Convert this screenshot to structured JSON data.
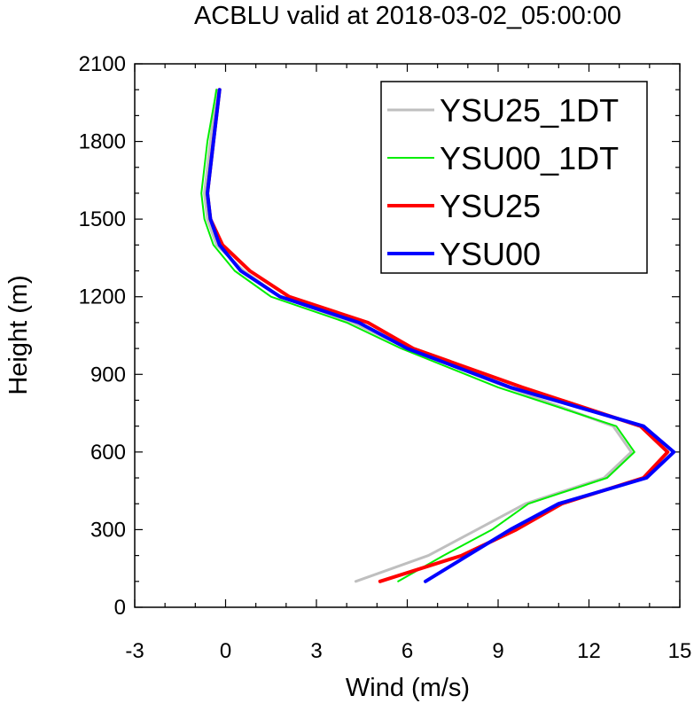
{
  "chart_data": {
    "type": "line",
    "title": "ACBLU valid at 2018-03-02_05:00:00",
    "xlabel": "Wind (m/s)",
    "ylabel": "Height (m)",
    "xlim": [
      -3,
      15
    ],
    "ylim": [
      0,
      2100
    ],
    "xticks": [
      -3,
      0,
      3,
      6,
      9,
      12,
      15
    ],
    "yticks": [
      0,
      300,
      600,
      900,
      1200,
      1500,
      1800,
      2100
    ],
    "grid": false,
    "legend_position": "top-right",
    "series": [
      {
        "name": "YSU25_1DT",
        "color": "#bfbfbf",
        "points": [
          [
            4.3,
            100
          ],
          [
            6.7,
            200
          ],
          [
            8.3,
            300
          ],
          [
            9.9,
            400
          ],
          [
            12.5,
            500
          ],
          [
            13.4,
            600
          ],
          [
            12.8,
            700
          ],
          [
            9.3,
            850
          ],
          [
            6.0,
            1000
          ],
          [
            4.2,
            1100
          ],
          [
            1.8,
            1200
          ],
          [
            0.6,
            1300
          ],
          [
            -0.3,
            1400
          ],
          [
            -0.6,
            1500
          ],
          [
            -0.7,
            1600
          ],
          [
            -0.6,
            1700
          ],
          [
            -0.5,
            1800
          ],
          [
            -0.3,
            2000
          ]
        ]
      },
      {
        "name": "YSU00_1DT",
        "color": "#00ee00",
        "points": [
          [
            5.7,
            100
          ],
          [
            7.2,
            200
          ],
          [
            8.8,
            300
          ],
          [
            10.0,
            400
          ],
          [
            12.6,
            500
          ],
          [
            13.5,
            600
          ],
          [
            12.9,
            700
          ],
          [
            9.0,
            850
          ],
          [
            5.8,
            1000
          ],
          [
            4.0,
            1100
          ],
          [
            1.5,
            1200
          ],
          [
            0.3,
            1300
          ],
          [
            -0.4,
            1400
          ],
          [
            -0.7,
            1500
          ],
          [
            -0.8,
            1600
          ],
          [
            -0.7,
            1700
          ],
          [
            -0.6,
            1800
          ],
          [
            -0.3,
            2000
          ]
        ]
      },
      {
        "name": "YSU25",
        "color": "#ff0000",
        "points": [
          [
            5.1,
            100
          ],
          [
            7.8,
            200
          ],
          [
            9.6,
            300
          ],
          [
            11.1,
            400
          ],
          [
            13.8,
            500
          ],
          [
            14.6,
            600
          ],
          [
            13.7,
            700
          ],
          [
            9.8,
            850
          ],
          [
            6.2,
            1000
          ],
          [
            4.7,
            1100
          ],
          [
            2.1,
            1200
          ],
          [
            0.8,
            1300
          ],
          [
            -0.1,
            1400
          ],
          [
            -0.5,
            1500
          ],
          [
            -0.6,
            1600
          ],
          [
            -0.5,
            1700
          ],
          [
            -0.4,
            1800
          ],
          [
            -0.2,
            2000
          ]
        ]
      },
      {
        "name": "YSU00",
        "color": "#0000ff",
        "points": [
          [
            6.6,
            100
          ],
          [
            8.0,
            200
          ],
          [
            9.4,
            300
          ],
          [
            11.0,
            400
          ],
          [
            13.9,
            500
          ],
          [
            14.8,
            600
          ],
          [
            13.8,
            700
          ],
          [
            9.4,
            850
          ],
          [
            6.0,
            1000
          ],
          [
            4.4,
            1100
          ],
          [
            1.8,
            1200
          ],
          [
            0.5,
            1300
          ],
          [
            -0.2,
            1400
          ],
          [
            -0.5,
            1500
          ],
          [
            -0.6,
            1600
          ],
          [
            -0.5,
            1700
          ],
          [
            -0.4,
            1800
          ],
          [
            -0.2,
            2000
          ]
        ]
      }
    ]
  }
}
